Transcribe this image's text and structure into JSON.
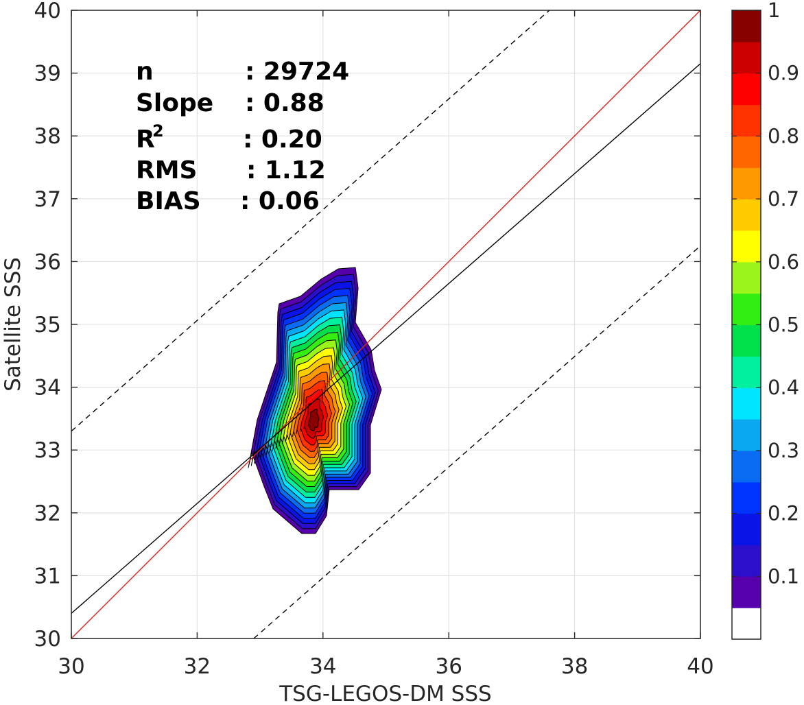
{
  "chart_data": {
    "type": "contour",
    "xlabel": "TSG-LEGOS-DM SSS",
    "ylabel": "Satellite SSS",
    "xlim": [
      30,
      40
    ],
    "ylim": [
      30,
      40
    ],
    "xticks": [
      30,
      32,
      34,
      36,
      38,
      40
    ],
    "yticks": [
      30,
      31,
      32,
      33,
      34,
      35,
      36,
      37,
      38,
      39,
      40
    ],
    "grid": true,
    "stats": {
      "n_label": "n",
      "n_value": ": 29724",
      "slope_label": "Slope",
      "slope_value": ": 0.88",
      "r2_label": "R",
      "r2_sup": "2",
      "r2_value": ": 0.20",
      "rms_label": "RMS",
      "rms_value": ": 1.12",
      "bias_label": "BIAS",
      "bias_value": ": 0.06"
    },
    "lines": [
      {
        "name": "1:1",
        "color": "#e0201b",
        "style": "solid",
        "points": [
          [
            30,
            30
          ],
          [
            40,
            40
          ]
        ]
      },
      {
        "name": "regression",
        "color": "#000000",
        "style": "solid",
        "points": [
          [
            30,
            30.4
          ],
          [
            40,
            39.15
          ]
        ]
      },
      {
        "name": "upper bound",
        "color": "#000000",
        "style": "dashed",
        "points": [
          [
            30,
            33.3
          ],
          [
            37.6,
            40
          ]
        ]
      },
      {
        "name": "lower bound",
        "color": "#000000",
        "style": "dashed",
        "points": [
          [
            32.9,
            30
          ],
          [
            40,
            36.25
          ]
        ]
      }
    ],
    "density_peak": {
      "x": 33.85,
      "y": 33.45
    },
    "contour_levels": [
      0.05,
      0.1,
      0.15,
      0.2,
      0.25,
      0.3,
      0.35,
      0.4,
      0.45,
      0.5,
      0.55,
      0.6,
      0.65,
      0.7,
      0.75,
      0.8,
      0.85,
      0.9,
      0.95
    ],
    "colorbar": {
      "ticks": [
        "0.1",
        "0.2",
        "0.3",
        "0.4",
        "0.5",
        "0.6",
        "0.7",
        "0.8",
        "0.9",
        "1"
      ],
      "colors": [
        "#ffffff",
        "#5500aa",
        "#2b0fcc",
        "#0a14e6",
        "#0033ff",
        "#0a6cf2",
        "#0aa8f0",
        "#00e5ff",
        "#00f0a0",
        "#00e04a",
        "#33ee10",
        "#99f51a",
        "#ffff00",
        "#ffcc00",
        "#ff9900",
        "#ff6600",
        "#ff3300",
        "#ff0000",
        "#cc0000",
        "#880000"
      ]
    }
  }
}
